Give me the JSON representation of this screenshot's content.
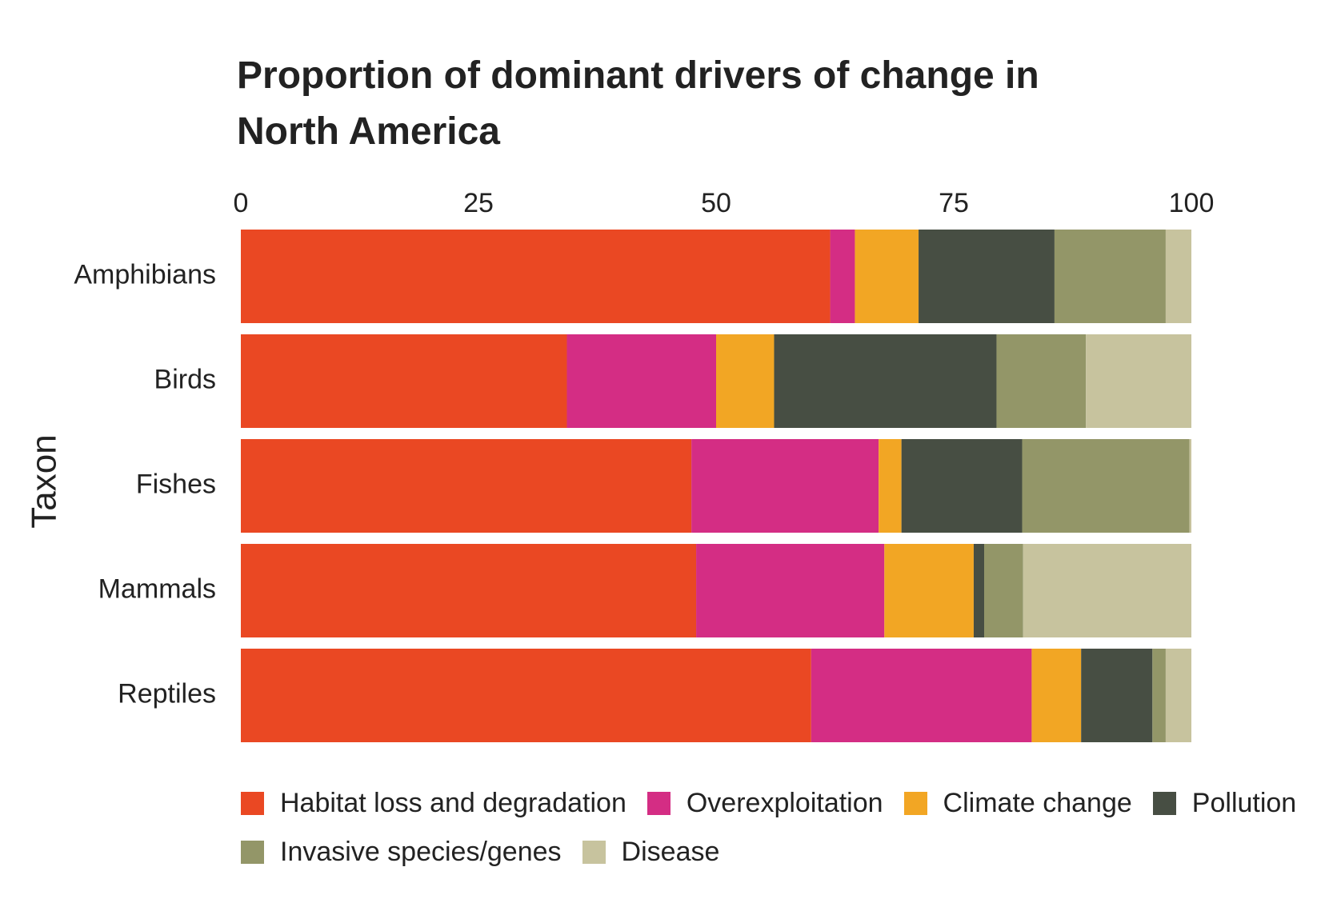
{
  "chart_data": {
    "type": "stacked-bar-horizontal",
    "title": "Proportion of dominant drivers of change in North America",
    "y_label": "Taxon",
    "categories": [
      "Amphibians",
      "Birds",
      "Fishes",
      "Mammals",
      "Reptiles"
    ],
    "series": [
      {
        "name": "Habitat loss and degradation",
        "color": "#ea4823",
        "values": [
          62.0,
          34.3,
          47.4,
          47.9,
          60.0
        ]
      },
      {
        "name": "Overexploitation",
        "color": "#d42d84",
        "values": [
          2.6,
          15.7,
          19.7,
          19.8,
          23.2
        ]
      },
      {
        "name": "Climate change",
        "color": "#f2a624",
        "values": [
          6.7,
          6.1,
          2.4,
          9.4,
          5.2
        ]
      },
      {
        "name": "Pollution",
        "color": "#474e43",
        "values": [
          14.3,
          23.4,
          12.7,
          1.1,
          7.5
        ]
      },
      {
        "name": "Invasive species/genes",
        "color": "#939668",
        "values": [
          11.7,
          9.4,
          17.6,
          4.1,
          1.4
        ]
      },
      {
        "name": "Disease",
        "color": "#c7c39e",
        "values": [
          2.7,
          11.1,
          0.2,
          17.7,
          2.7
        ]
      }
    ],
    "xlim": [
      0,
      100
    ],
    "xticks": [
      0,
      25,
      50,
      75,
      100
    ],
    "grid": false
  }
}
